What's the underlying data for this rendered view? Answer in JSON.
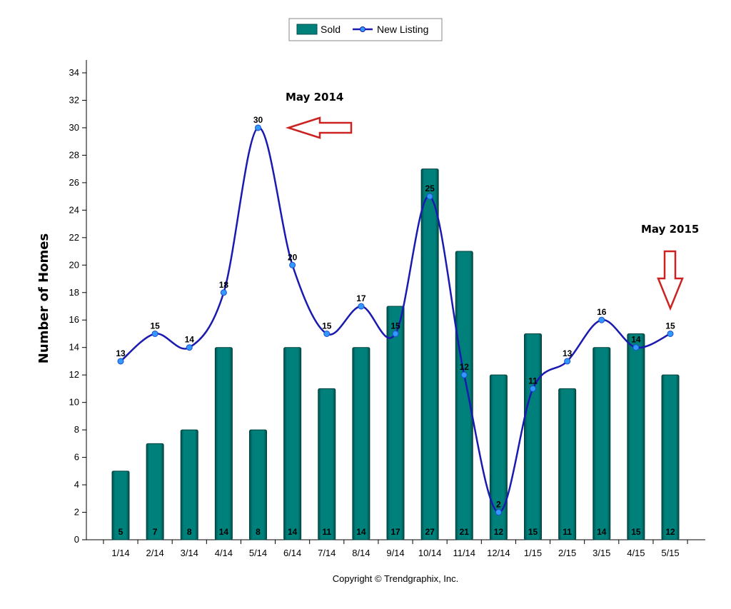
{
  "chart_data": {
    "type": "bar",
    "ylabel": "Number of Homes",
    "xlabel": "",
    "ylim": [
      0,
      34
    ],
    "yticks": [
      "0",
      "2",
      "4",
      "6",
      "8",
      "10",
      "12",
      "14",
      "16",
      "18",
      "20",
      "22",
      "24",
      "26",
      "28",
      "30",
      "32",
      "34"
    ],
    "categories": [
      "1/14",
      "2/14",
      "3/14",
      "4/14",
      "5/14",
      "6/14",
      "7/14",
      "8/14",
      "9/14",
      "10/14",
      "11/14",
      "12/14",
      "1/15",
      "2/15",
      "3/15",
      "4/15",
      "5/15"
    ],
    "series": [
      {
        "name": "Sold",
        "kind": "bar",
        "color": "#00807a",
        "values": [
          5,
          7,
          8,
          14,
          8,
          14,
          11,
          14,
          17,
          27,
          21,
          12,
          15,
          11,
          14,
          15,
          12
        ],
        "labels": [
          "5",
          "7",
          "8",
          "14",
          "8",
          "14",
          "11",
          "14",
          "17",
          "27",
          "21",
          "12",
          "15",
          "11",
          "14",
          "15",
          "12"
        ]
      },
      {
        "name": "New Listing",
        "kind": "line",
        "color": "#1a1ab0",
        "marker_color": "#3399ff",
        "values": [
          13,
          15,
          14,
          18,
          30,
          20,
          15,
          17,
          15,
          25,
          12,
          2,
          11,
          13,
          16,
          14,
          15
        ],
        "labels": [
          "13",
          "15",
          "14",
          "18",
          "30",
          "20",
          "15",
          "17",
          "15",
          "25",
          "12",
          "2",
          "11",
          "13",
          "16",
          "14",
          "15"
        ]
      }
    ],
    "legend": {
      "position": "top-center",
      "items": [
        "Sold",
        "New Listing"
      ]
    },
    "annotations": [
      {
        "text": "May 2014",
        "arrow": "left",
        "arrow_color": "#cc2222"
      },
      {
        "text": "May 2015",
        "arrow": "down",
        "arrow_color": "#cc2222"
      }
    ],
    "grid": false
  },
  "footer": {
    "copyright": "Copyright © Trendgraphix, Inc."
  }
}
